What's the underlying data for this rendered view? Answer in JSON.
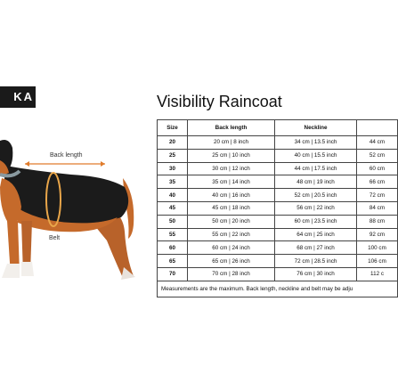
{
  "brand": {
    "text": "KA"
  },
  "figure": {
    "back_length_label": "Back length",
    "belt_label": "Belt"
  },
  "title": "Visibility Raincoat",
  "table": {
    "headers": [
      "Size",
      "Back length",
      "Neckline",
      ""
    ],
    "rows": [
      [
        "20",
        "20 cm | 8 inch",
        "34 cm | 13.5 inch",
        "44 cm"
      ],
      [
        "25",
        "25 cm | 10 inch",
        "40 cm | 15.5 inch",
        "52 cm"
      ],
      [
        "30",
        "30 cm | 12 inch",
        "44 cm | 17.5 inch",
        "60 cm"
      ],
      [
        "35",
        "35 cm | 14 inch",
        "48 cm | 19 inch",
        "66 cm"
      ],
      [
        "40",
        "40 cm | 16 inch",
        "52 cm | 20.5 inch",
        "72 cm"
      ],
      [
        "45",
        "45 cm | 18 inch",
        "56 cm | 22 inch",
        "84 cm"
      ],
      [
        "50",
        "50 cm | 20 inch",
        "60 cm | 23.5 inch",
        "88 cm"
      ],
      [
        "55",
        "55 cm | 22 inch",
        "64 cm | 25 inch",
        "92 cm"
      ],
      [
        "60",
        "60 cm | 24 inch",
        "68 cm | 27 inch",
        "100 cm"
      ],
      [
        "65",
        "65 cm | 26 inch",
        "72 cm | 28.5 inch",
        "106 cm"
      ],
      [
        "70",
        "70 cm | 28 inch",
        "76 cm | 30 inch",
        "112 c"
      ]
    ],
    "note": "Measurements are the maximum. Back length, neckline and belt may be adju"
  }
}
